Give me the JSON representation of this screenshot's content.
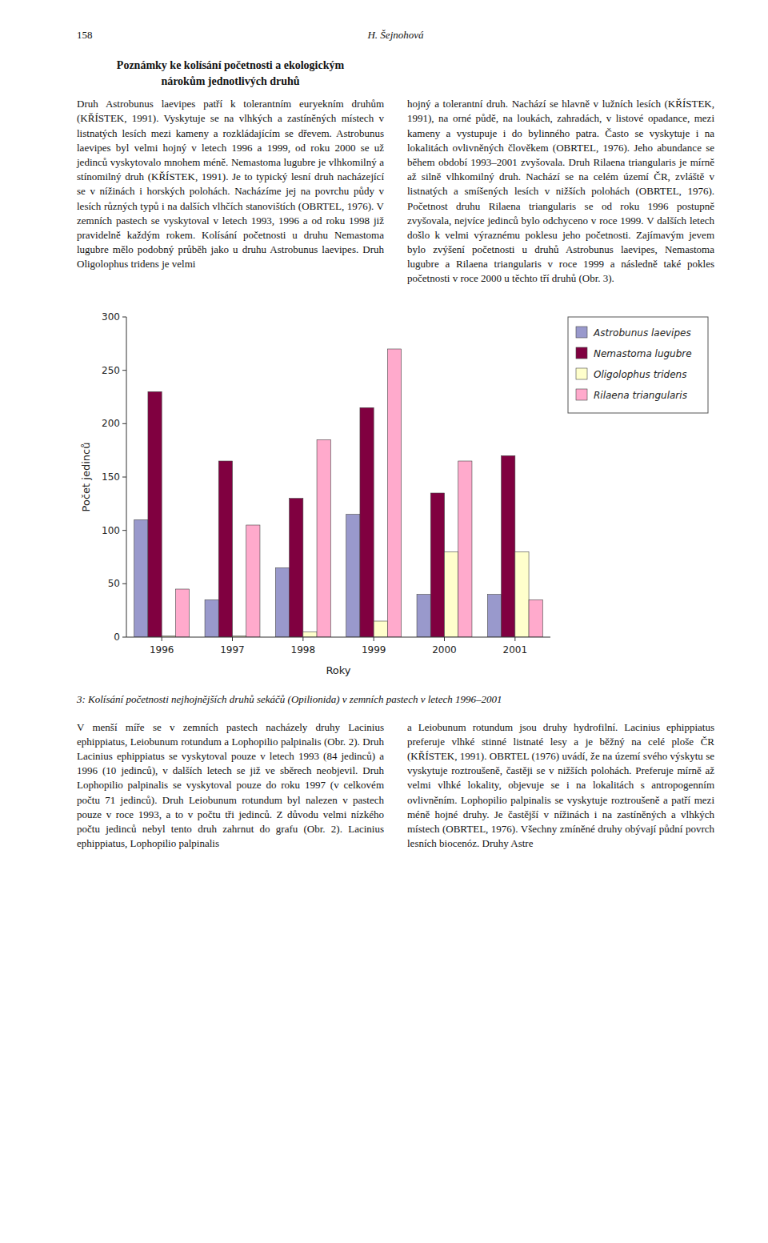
{
  "header_num": "158",
  "header_author": "H. Šejnohová",
  "title_text": "Poznámky ke kolísání početnosti a ekologickým\nnárokům jednotlivých druhů",
  "col1_text": "Druh Astrobunus laevipes patří k tolerantním euryekním druhům (KŘÍSTEK, 1991). Vyskytuje se na vlhkých a zastíněných místech v listnatých lesích mezi kameny a rozkládajícím se dřevem. Astrobunus laevipes byl velmi hojný v letech 1996 a 1999, od roku 2000 se už jedinců vyskytovalo mnohem méně. Nemastoma lugubre je vlhkomilný a stínomilný druh (KŘÍSTEK, 1991). Je to typický lesní druh nacházející se v nížinách i horských polohách. Nacházíme jej na povrchu půdy v lesích různých typů i na dalších vlhčích stanovištích (OBRTEL, 1976). V zemních pastech se vyskytoval v letech 1993, 1996 a od roku 1998 již pravidelně každým rokem. Kolísání početnosti u druhu Nemastoma lugubre mělo podobný průběh jako u druhu Astrobunus laevipes. Druh Oligolophus tridens je velmi",
  "col2_text": "hojný a tolerantní druh. Nachází se hlavně v lužních lesích (KŘÍSTEK, 1991), na orné půdě, na loukách, zahradách, v listové opadance, mezi kameny a vystupuje i do bylinného patra. Často se vyskytuje i na lokalitách ovlivněných člověkem (OBRTEL, 1976). Jeho abundance se během období 1993–2001 zvyšovala. Druh Rilaena triangularis je mírně až silně vlhkomilný druh. Nachází se na celém území ČR, zvláště v listnatých a smíšených lesích v nižších polohách (OBRTEL, 1976). Početnost druhu Rilaena triangularis se od roku 1996 postupně zvyšovala, nejvíce jedinců bylo odchyceno v roce 1999. V dalších letech došlo k velmi výraznému poklesu jeho početnosti. Zajímavým jevem bylo zvýšení početnosti u druhů Astrobunus laevipes, Nemastoma lugubre a Rilaena triangularis v roce 1999 a následně také pokles početnosti v roce 2000 u těchto tří druhů (Obr. 3).",
  "bottom_col1": "V menší míře se v zemních pastech nacházely druhy Lacinius ephippiatus, Leiobunum rotundum a Lophopilio palpinalis (Obr. 2). Druh Lacinius ephippiatus se vyskytoval pouze v letech 1993 (84 jedinců) a 1996 (10 jedinců), v dalších letech se již ve sběrech neobjevil. Druh Lophopilio palpinalis se vyskytoval pouze do roku 1997 (v celkovém počtu 71 jedinců). Druh Leiobunum rotundum byl nalezen v pastech pouze v roce 1993, a to v počtu tři jedinců. Z důvodu velmi nízkého počtu jedinců nebyl tento druh zahrnut do grafu (Obr. 2). Lacinius ephippiatus, Lophopilio palpinalis",
  "bottom_col2": "a Leiobunum rotundum jsou druhy hydrofilní. Lacinius ephippiatus preferuje vlhké stinné listnaté lesy a je běžný na celé ploše ČR (KŘÍSTEK, 1991). OBRTEL (1976) uvádí, že na území svého výskytu se vyskytuje roztroušeně, častěji se v nižších polohách. Preferuje mírně až velmi vlhké lokality, objevuje se i na lokalitách s antropogenním ovlivněním. Lophopilio palpinalis se vyskytuje roztroušeně a patří mezi méně hojné druhy. Je častější v nížinách i na zastíněných a vlhkých místech (OBRTEL, 1976). Všechny zmíněné druhy obývají půdní povrch lesních biocenóz. Druhy Astre",
  "chart_data": {
    "type": "bar",
    "title": "3: Kolísání početnosti nejhojnějších druhů sekáčů (Opilionida) v zemních pastech v letech 1996–2001",
    "xlabel": "Roky",
    "ylabel": "Počet jedinců",
    "categories": [
      "1996",
      "1997",
      "1998",
      "1999",
      "2000",
      "2001"
    ],
    "series": [
      {
        "name": "Astrobunus laevipes",
        "color": "#9999cc",
        "values": [
          110,
          35,
          65,
          115,
          40,
          40
        ]
      },
      {
        "name": "Nemastoma lugubre",
        "color": "#800040",
        "values": [
          230,
          165,
          130,
          215,
          135,
          170
        ]
      },
      {
        "name": "Oligolophus tridens",
        "color": "#ffffcc",
        "values": [
          1,
          1,
          5,
          15,
          80,
          80
        ]
      },
      {
        "name": "Rilaena triangularis",
        "color": "#ffaacc",
        "values": [
          45,
          105,
          185,
          270,
          165,
          35
        ]
      }
    ],
    "ylim": [
      0,
      300
    ],
    "yticks": [
      0,
      50,
      100,
      150,
      200,
      250,
      300
    ],
    "grid": false,
    "legend": "right"
  }
}
